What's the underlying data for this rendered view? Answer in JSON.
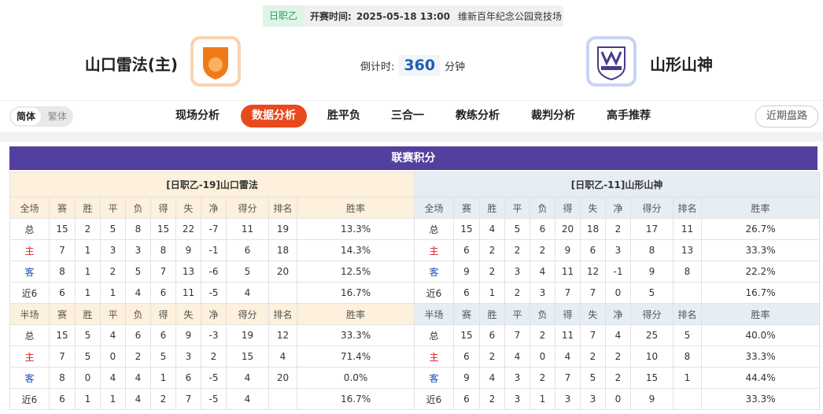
{
  "header": {
    "league": "日职乙",
    "kickoff_label": "开赛时间:",
    "kickoff": "2025-05-18 13:00",
    "venue": "维新百年纪念公园竞技场",
    "home": "山口雷法(主)",
    "away": "山形山神",
    "countdown_label": "倒计时:",
    "countdown": 360,
    "countdown_unit": "分钟"
  },
  "nav": {
    "lang": [
      "简体",
      "繁体"
    ],
    "tabs": [
      "现场分析",
      "数据分析",
      "胜平负",
      "三合一",
      "教练分析",
      "裁判分析",
      "高手推荐"
    ],
    "active": 1,
    "side_button": "近期盘路"
  },
  "section_title": "联赛积分",
  "tables": [
    {
      "title": "[日职乙-19]山口雷法",
      "full": {
        "header": [
          "全场",
          "赛",
          "胜",
          "平",
          "负",
          "得",
          "失",
          "净",
          "得分",
          "排名",
          "胜率"
        ],
        "rows": [
          [
            "总",
            15,
            2,
            5,
            8,
            15,
            22,
            -7,
            11,
            19,
            "13.3%"
          ],
          [
            "主",
            7,
            1,
            3,
            3,
            8,
            9,
            -1,
            6,
            18,
            "14.3%"
          ],
          [
            "客",
            8,
            1,
            2,
            5,
            7,
            13,
            -6,
            5,
            20,
            "12.5%"
          ],
          [
            "近6",
            6,
            1,
            1,
            4,
            6,
            11,
            -5,
            4,
            null,
            "16.7%"
          ]
        ]
      },
      "half": {
        "header": [
          "半场",
          "赛",
          "胜",
          "平",
          "负",
          "得",
          "失",
          "净",
          "得分",
          "排名",
          "胜率"
        ],
        "rows": [
          [
            "总",
            15,
            5,
            4,
            6,
            6,
            9,
            -3,
            19,
            12,
            "33.3%"
          ],
          [
            "主",
            7,
            5,
            0,
            2,
            5,
            3,
            2,
            15,
            4,
            "71.4%"
          ],
          [
            "客",
            8,
            0,
            4,
            4,
            1,
            6,
            -5,
            4,
            20,
            "0.0%"
          ],
          [
            "近6",
            6,
            1,
            1,
            4,
            2,
            7,
            -5,
            4,
            null,
            "16.7%"
          ]
        ]
      }
    },
    {
      "title": "[日职乙-11]山形山神",
      "full": {
        "header": [
          "全场",
          "赛",
          "胜",
          "平",
          "负",
          "得",
          "失",
          "净",
          "得分",
          "排名",
          "胜率"
        ],
        "rows": [
          [
            "总",
            15,
            4,
            5,
            6,
            20,
            18,
            2,
            17,
            11,
            "26.7%"
          ],
          [
            "主",
            6,
            2,
            2,
            2,
            9,
            6,
            3,
            8,
            13,
            "33.3%"
          ],
          [
            "客",
            9,
            2,
            3,
            4,
            11,
            12,
            -1,
            9,
            8,
            "22.2%"
          ],
          [
            "近6",
            6,
            1,
            2,
            3,
            7,
            7,
            0,
            5,
            null,
            "16.7%"
          ]
        ]
      },
      "half": {
        "header": [
          "半场",
          "赛",
          "胜",
          "平",
          "负",
          "得",
          "失",
          "净",
          "得分",
          "排名",
          "胜率"
        ],
        "rows": [
          [
            "总",
            15,
            6,
            7,
            2,
            11,
            7,
            4,
            25,
            5,
            "40.0%"
          ],
          [
            "主",
            6,
            2,
            4,
            0,
            4,
            2,
            2,
            10,
            8,
            "33.3%"
          ],
          [
            "客",
            9,
            4,
            3,
            2,
            7,
            5,
            2,
            15,
            1,
            "44.4%"
          ],
          [
            "近6",
            6,
            2,
            3,
            1,
            3,
            3,
            0,
            9,
            null,
            "33.3%"
          ]
        ]
      }
    }
  ]
}
